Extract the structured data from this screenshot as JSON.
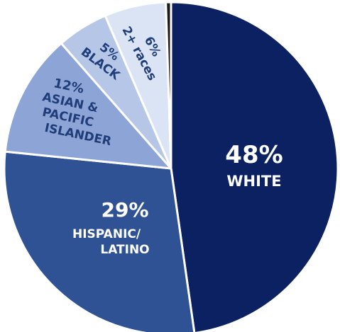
{
  "chart_data": {
    "type": "pie",
    "title": "",
    "slices": [
      {
        "label": "WHITE",
        "value": 48,
        "value_label": "48%",
        "color": "#0b2161",
        "label_color": "#ffffff"
      },
      {
        "label": "HISPANIC/ LATINO",
        "value": 29,
        "value_label": "29%",
        "color": "#2e5293",
        "label_color": "#ffffff"
      },
      {
        "label": "ASIAN & PACIFIC ISLANDER",
        "value": 12,
        "value_label": "12%",
        "color": "#8ca5d6",
        "label_color": "#1f3d78"
      },
      {
        "label": "BLACK",
        "value": 5,
        "value_label": "5%",
        "color": "#b6c6e6",
        "label_color": "#1f3d78"
      },
      {
        "label": "2+ races",
        "value": 6,
        "value_label": "6%",
        "color": "#dbe4f4",
        "label_color": "#1f3d78"
      },
      {
        "label": "",
        "value": 0.5,
        "value_label": "",
        "color": "#1a1a1a",
        "label_color": "#1f3d78"
      }
    ]
  }
}
